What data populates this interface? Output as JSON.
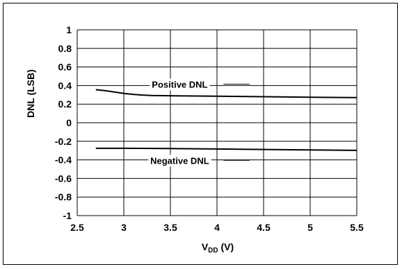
{
  "chart_data": {
    "type": "line",
    "xlabel_main": "V",
    "xlabel_sub": "DD",
    "xlabel_unit": " (V)",
    "ylabel": "DNL (LSB)",
    "xlim": [
      2.5,
      5.5
    ],
    "ylim": [
      -1,
      1
    ],
    "x_ticks": [
      2.5,
      3,
      3.5,
      4,
      4.5,
      5,
      5.5
    ],
    "x_tick_labels": [
      "2.5",
      "3",
      "3.5",
      "4",
      "4.5",
      "5",
      "5.5"
    ],
    "y_ticks": [
      1,
      0.8,
      0.6,
      0.4,
      0.2,
      0,
      -0.2,
      -0.4,
      -0.6,
      -0.8,
      -1
    ],
    "y_tick_labels": [
      "1",
      "0.8",
      "0.6",
      "0.4",
      "0.2",
      "0",
      "-0.2",
      "-0.4",
      "-0.6",
      "-0.8",
      "-1"
    ],
    "grid": true,
    "series": [
      {
        "name": "Positive DNL",
        "x": [
          2.7,
          2.8,
          2.9,
          3.0,
          3.1,
          3.2,
          3.3,
          3.5,
          4.0,
          4.5,
          5.0,
          5.5
        ],
        "y": [
          0.355,
          0.345,
          0.33,
          0.315,
          0.305,
          0.298,
          0.293,
          0.29,
          0.285,
          0.28,
          0.275,
          0.27
        ]
      },
      {
        "name": "Negative DNL",
        "x": [
          2.7,
          3.0,
          3.5,
          4.0,
          4.5,
          5.0,
          5.5
        ],
        "y": [
          -0.275,
          -0.275,
          -0.278,
          -0.283,
          -0.288,
          -0.293,
          -0.298
        ]
      }
    ],
    "annotations": [
      {
        "text": "Positive DNL",
        "x": 3.6,
        "y": 0.415,
        "leader_from": 4.07,
        "leader_to": 4.35
      },
      {
        "text": "Negative DNL",
        "x": 3.6,
        "y": -0.405,
        "leader_from": 4.07,
        "leader_to": 4.35
      }
    ],
    "color": "#000000"
  }
}
